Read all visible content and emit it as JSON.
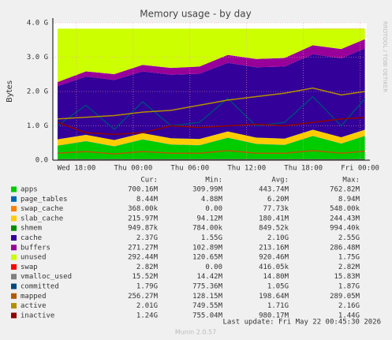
{
  "chart_data": {
    "type": "area",
    "title": "Memory usage - by day",
    "ylabel": "Bytes",
    "side_text": "RRDTOOL / TOBI OETIKER",
    "x": [
      16,
      19,
      22,
      25,
      28,
      31,
      34,
      37,
      40,
      43,
      46,
      48.5
    ],
    "xlim": [
      15.5,
      48.7
    ],
    "xticks": [
      {
        "value": 18,
        "label": "Wed 18:00"
      },
      {
        "value": 24,
        "label": "Thu 00:00"
      },
      {
        "value": 30,
        "label": "Thu 06:00"
      },
      {
        "value": 36,
        "label": "Thu 12:00"
      },
      {
        "value": 42,
        "label": "Thu 18:00"
      },
      {
        "value": 48,
        "label": "Fri 00:00"
      }
    ],
    "ylim": [
      0,
      4000000000
    ],
    "yticks": [
      {
        "value": 0,
        "label": "0.0"
      },
      {
        "value": 1000000000,
        "label": "1.0 G"
      },
      {
        "value": 2000000000,
        "label": "2.0 G"
      },
      {
        "value": 3000000000,
        "label": "3.0 G"
      },
      {
        "value": 4000000000,
        "label": "4.0 G"
      }
    ],
    "grid": true,
    "stat_headers": [
      "Cur:",
      "Min:",
      "Avg:",
      "Max:"
    ],
    "series": [
      {
        "name": "apps",
        "color": "#00cc00",
        "draw": "stack",
        "values": [
          420000000,
          550000000,
          400000000,
          600000000,
          450000000,
          430000000,
          650000000,
          470000000,
          440000000,
          700000000,
          480000000,
          700000000
        ],
        "stats": [
          "700.16M",
          "309.99M",
          "443.74M",
          "762.82M"
        ]
      },
      {
        "name": "page_tables",
        "color": "#0066b3",
        "draw": "stack",
        "values": [
          6000000,
          6000000,
          6000000,
          6000000,
          6000000,
          6000000,
          6000000,
          6000000,
          6000000,
          6000000,
          6000000,
          6000000
        ],
        "stats": [
          "8.44M",
          "4.88M",
          "6.20M",
          "8.94M"
        ]
      },
      {
        "name": "swap_cache",
        "color": "#ff8000",
        "draw": "stack",
        "values": [
          100000,
          100000,
          100000,
          100000,
          100000,
          100000,
          100000,
          100000,
          100000,
          100000,
          100000,
          100000
        ],
        "stats": [
          "368.00k",
          "0.00",
          "77.73k",
          "548.00k"
        ]
      },
      {
        "name": "slab_cache",
        "color": "#ffcc00",
        "draw": "stack",
        "values": [
          180000000,
          180000000,
          180000000,
          180000000,
          180000000,
          180000000,
          180000000,
          180000000,
          180000000,
          180000000,
          180000000,
          180000000
        ],
        "stats": [
          "215.97M",
          "94.12M",
          "180.41M",
          "244.43M"
        ]
      },
      {
        "name": "shmem",
        "color": "#008f00",
        "draw": "stack",
        "values": [
          1000000,
          1000000,
          1000000,
          1000000,
          1000000,
          1000000,
          1000000,
          1000000,
          1000000,
          1000000,
          1000000,
          1000000
        ],
        "stats": [
          "949.87k",
          "784.00k",
          "849.52k",
          "994.40k"
        ]
      },
      {
        "name": "cache",
        "color": "#330099",
        "draw": "stack",
        "values": [
          1550000000,
          1700000000,
          1750000000,
          1800000000,
          1850000000,
          1900000000,
          2000000000,
          2050000000,
          2100000000,
          2200000000,
          2300000000,
          2370000000
        ],
        "stats": [
          "2.37G",
          "1.55G",
          "2.10G",
          "2.55G"
        ]
      },
      {
        "name": "buffers",
        "color": "#990099",
        "draw": "stack",
        "values": [
          120000000,
          150000000,
          170000000,
          190000000,
          200000000,
          210000000,
          230000000,
          240000000,
          250000000,
          260000000,
          270000000,
          270000000
        ],
        "stats": [
          "271.27M",
          "102.89M",
          "213.16M",
          "286.48M"
        ]
      },
      {
        "name": "unused",
        "color": "#ccff00",
        "draw": "stack",
        "values": [
          1553000000,
          1243000000,
          1323000000,
          1053000000,
          1143000000,
          1103000000,
          763000000,
          883000000,
          853000000,
          483000000,
          593000000,
          303000000
        ],
        "stats": [
          "292.44M",
          "120.65M",
          "920.46M",
          "1.75G"
        ]
      },
      {
        "name": "swap",
        "color": "#ff0000",
        "draw": "stack",
        "values": [
          0,
          0,
          0,
          0,
          0,
          0,
          0,
          0,
          0,
          2800000,
          2800000,
          2800000
        ],
        "stats": [
          "2.82M",
          "0.00",
          "416.05k",
          "2.82M"
        ]
      },
      {
        "name": "vmalloc_used",
        "color": "#808080",
        "draw": "line",
        "values": [
          15000000,
          15000000,
          15000000,
          15000000,
          15000000,
          15000000,
          15000000,
          15000000,
          15000000,
          15000000,
          15000000,
          15000000
        ],
        "stats": [
          "15.52M",
          "14.42M",
          "14.80M",
          "15.83M"
        ]
      },
      {
        "name": "committed",
        "color": "#00487d",
        "draw": "line",
        "values": [
          1000000000,
          1600000000,
          900000000,
          1700000000,
          1000000000,
          1100000000,
          1800000000,
          1000000000,
          1100000000,
          1850000000,
          1000000000,
          1790000000
        ],
        "stats": [
          "1.79G",
          "775.36M",
          "1.05G",
          "1.87G"
        ]
      },
      {
        "name": "mapped",
        "color": "#b35a00",
        "draw": "line",
        "values": [
          200000000,
          250000000,
          180000000,
          250000000,
          200000000,
          200000000,
          280000000,
          200000000,
          200000000,
          280000000,
          200000000,
          260000000
        ],
        "stats": [
          "256.27M",
          "128.15M",
          "198.64M",
          "289.05M"
        ]
      },
      {
        "name": "active",
        "color": "#b38f00",
        "draw": "line",
        "values": [
          1200000000,
          1250000000,
          1300000000,
          1400000000,
          1450000000,
          1600000000,
          1750000000,
          1850000000,
          1950000000,
          2100000000,
          1900000000,
          2000000000
        ],
        "stats": [
          "2.01G",
          "749.55M",
          "1.71G",
          "2.16G"
        ]
      },
      {
        "name": "inactive",
        "color": "#8f0000",
        "draw": "line",
        "values": [
          1100000000,
          800000000,
          750000000,
          800000000,
          1000000000,
          950000000,
          1000000000,
          1050000000,
          1000000000,
          1100000000,
          1200000000,
          1240000000
        ],
        "stats": [
          "1.24G",
          "755.04M",
          "980.17M",
          "1.44G"
        ]
      }
    ],
    "last_update": "Last update: Fri May 22 00:45:30 2026",
    "footer": "Munin 2.0.57"
  }
}
